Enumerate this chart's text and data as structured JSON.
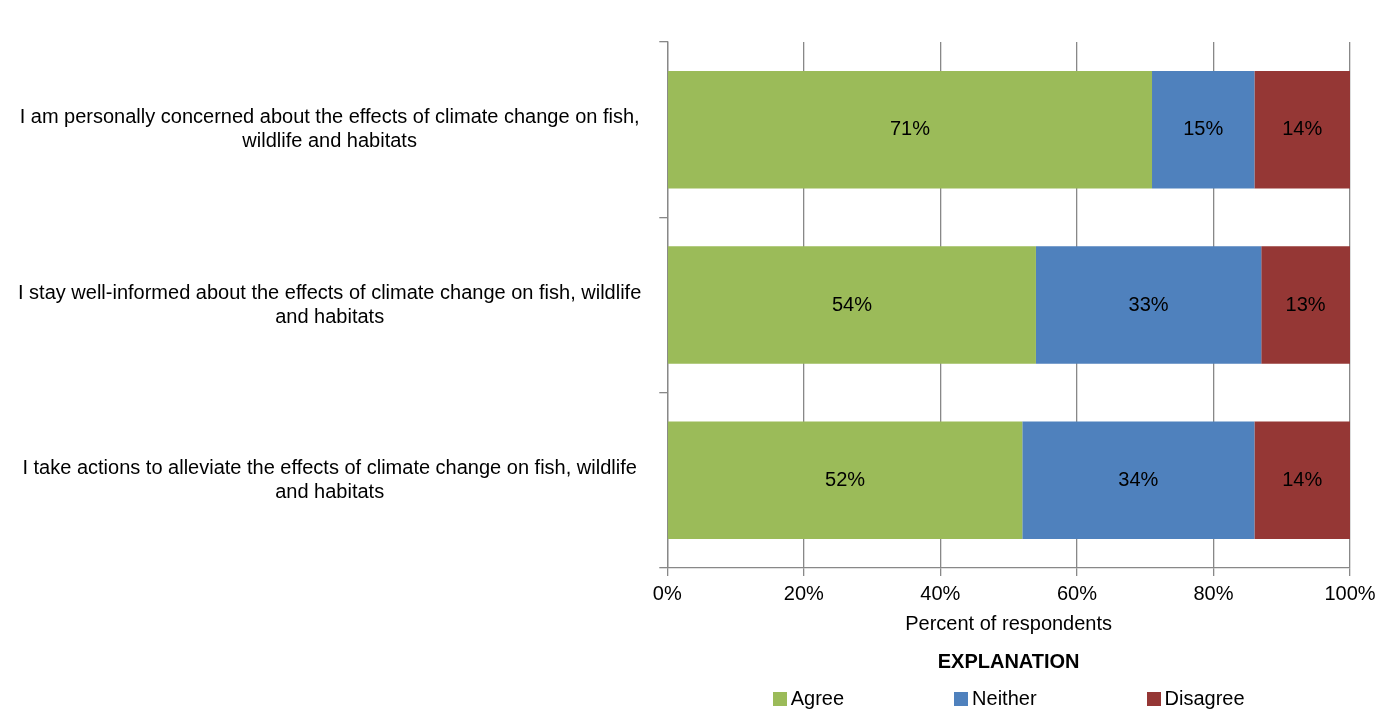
{
  "chart_data": {
    "type": "bar",
    "orientation": "horizontal",
    "stacked": true,
    "categories": [
      "I am personally concerned about the effects of climate change on fish, wildlife and habitats",
      "I stay well-informed about the effects of climate change on fish, wildlife and habitats",
      "I take actions to alleviate the effects of climate change on fish, wildlife and habitats"
    ],
    "series": [
      {
        "name": "Agree",
        "color": "#9bbb59",
        "values": [
          71,
          54,
          52
        ],
        "value_labels": [
          "71%",
          "54%",
          "52%"
        ]
      },
      {
        "name": "Neither",
        "color": "#4f81bd",
        "values": [
          15,
          33,
          34
        ],
        "value_labels": [
          "15%",
          "33%",
          "34%"
        ]
      },
      {
        "name": "Disagree",
        "color": "#953735",
        "values": [
          14,
          13,
          14
        ],
        "value_labels": [
          "14%",
          "13%",
          "14%"
        ]
      }
    ],
    "xlim": [
      0,
      100
    ],
    "xticks": [
      {
        "value": 0,
        "label": "0%"
      },
      {
        "value": 20,
        "label": "20%"
      },
      {
        "value": 40,
        "label": "40%"
      },
      {
        "value": 60,
        "label": "60%"
      },
      {
        "value": 80,
        "label": "80%"
      },
      {
        "value": 100,
        "label": "100%"
      }
    ],
    "xlabel": "Percent of respondents",
    "legend_title": "EXPLANATION",
    "legend": "bottom",
    "grid": "x"
  }
}
